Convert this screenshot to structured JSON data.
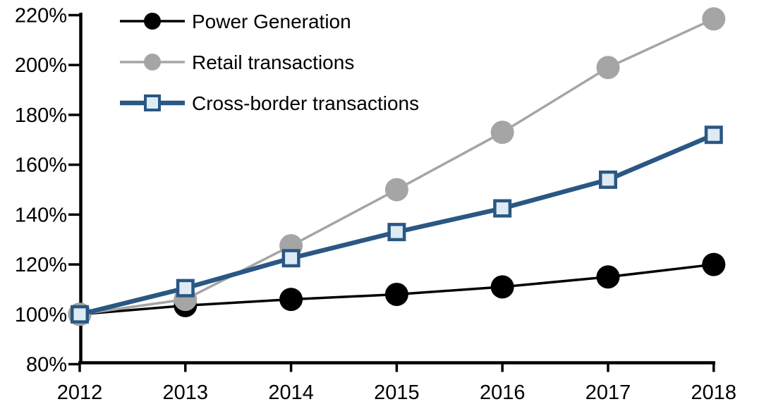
{
  "chart_data": {
    "type": "line",
    "title": "",
    "xlabel": "",
    "ylabel": "",
    "grid": false,
    "background_color": "#FFFFFF",
    "text_color": "#000000",
    "x": [
      2012,
      2013,
      2014,
      2015,
      2016,
      2017,
      2018
    ],
    "x_axis": {
      "tick_labels": [
        "2012",
        "2013",
        "2014",
        "2015",
        "2016",
        "2017",
        "2018"
      ]
    },
    "y_axis": {
      "min": 80,
      "max": 220,
      "step": 20,
      "format": "percent",
      "tick_labels": [
        "80%",
        "100%",
        "120%",
        "140%",
        "160%",
        "180%",
        "200%",
        "220%"
      ]
    },
    "series": [
      {
        "name": "Power Generation",
        "values": [
          100,
          103.5,
          106,
          108,
          111,
          115,
          120
        ],
        "color": "#000000",
        "marker": "circle",
        "marker_fill": "#000000",
        "line_width": 3.5
      },
      {
        "name": "Retail transactions",
        "values": [
          100,
          106,
          127.5,
          150,
          173,
          199,
          218.5
        ],
        "color": "#A5A5A5",
        "marker": "circle",
        "marker_fill": "#A5A5A5",
        "line_width": 3.5
      },
      {
        "name": "Cross-border transactions",
        "values": [
          100,
          110.5,
          122.5,
          133,
          142.5,
          154,
          172
        ],
        "color": "#2A5783",
        "marker": "square",
        "marker_fill": "#DEEBF5",
        "line_width": 6.5
      }
    ],
    "legend": {
      "position": "top-left",
      "entries": [
        "Power Generation",
        "Retail transactions",
        "Cross-border transactions"
      ]
    }
  }
}
